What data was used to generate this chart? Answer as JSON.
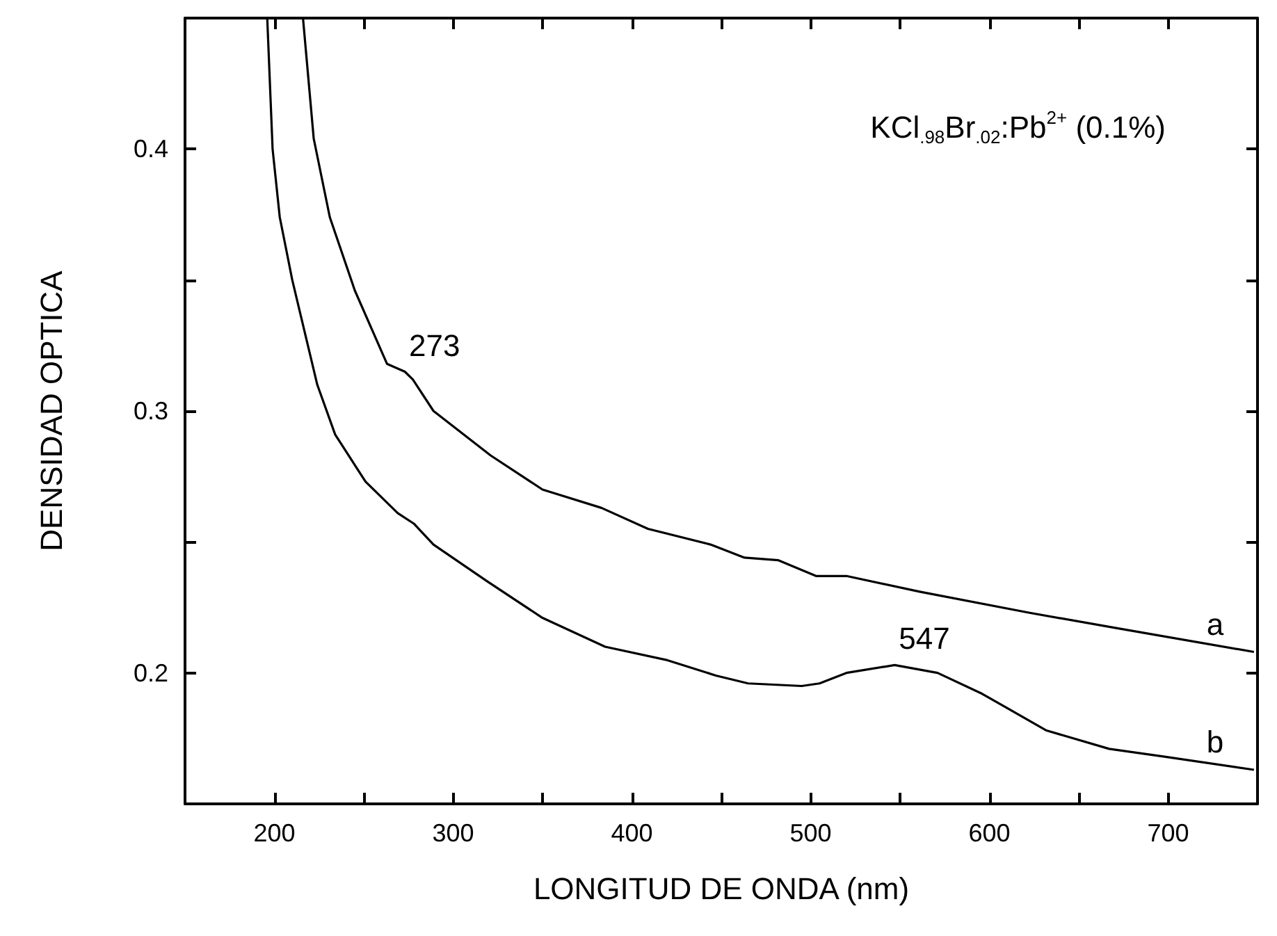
{
  "chart_data": {
    "type": "line",
    "xlabel": "LONGITUD DE ONDA (nm)",
    "ylabel": "DENSIDAD OPTICA",
    "xlim": [
      150,
      750
    ],
    "ylim": [
      0.15,
      0.45
    ],
    "xticks": [
      200,
      {
        "value": 250,
        "label": null
      },
      300,
      {
        "value": 350,
        "label": null
      },
      400,
      {
        "value": 450,
        "label": null
      },
      500,
      {
        "value": 550,
        "label": null
      },
      600,
      {
        "value": 650,
        "label": null
      },
      700
    ],
    "yticks": [
      0.2,
      {
        "value": 0.25,
        "label": null
      },
      0.3,
      {
        "value": 0.35,
        "label": null
      },
      0.4
    ],
    "series": [
      {
        "name": "a",
        "color": "#000000",
        "x": [
          216,
          222,
          231,
          245,
          263,
          273,
          277.5,
          289,
          321,
          350,
          383,
          409,
          444,
          463,
          482,
          503,
          520,
          561,
          622,
          672,
          748
        ],
        "values": [
          0.45,
          0.404,
          0.374,
          0.346,
          0.318,
          0.315,
          0.312,
          0.3,
          0.283,
          0.27,
          0.263,
          0.255,
          0.249,
          0.244,
          0.243,
          0.237,
          0.237,
          0.231,
          0.223,
          0.217,
          0.208
        ]
      },
      {
        "name": "b",
        "color": "#000000",
        "x": [
          196,
          199,
          203,
          210,
          224,
          234,
          251,
          269,
          278,
          289,
          319,
          350,
          385,
          419,
          447,
          465,
          495,
          505,
          520,
          547,
          571,
          596,
          632,
          667,
          698,
          748
        ],
        "values": [
          0.45,
          0.4,
          0.374,
          0.35,
          0.31,
          0.291,
          0.273,
          0.261,
          0.257,
          0.249,
          0.235,
          0.221,
          0.21,
          0.205,
          0.199,
          0.196,
          0.195,
          0.196,
          0.2,
          0.203,
          0.2,
          0.192,
          0.178,
          0.171,
          0.168,
          0.163
        ]
      }
    ],
    "annotations": [
      {
        "text": "273",
        "x": 273,
        "y": 0.315
      },
      {
        "text": "547",
        "x": 547,
        "y": 0.203
      },
      "KCl$_{.98}$Br$_{.02}$:Pb$^{2+}$ (0.1%)"
    ]
  }
}
